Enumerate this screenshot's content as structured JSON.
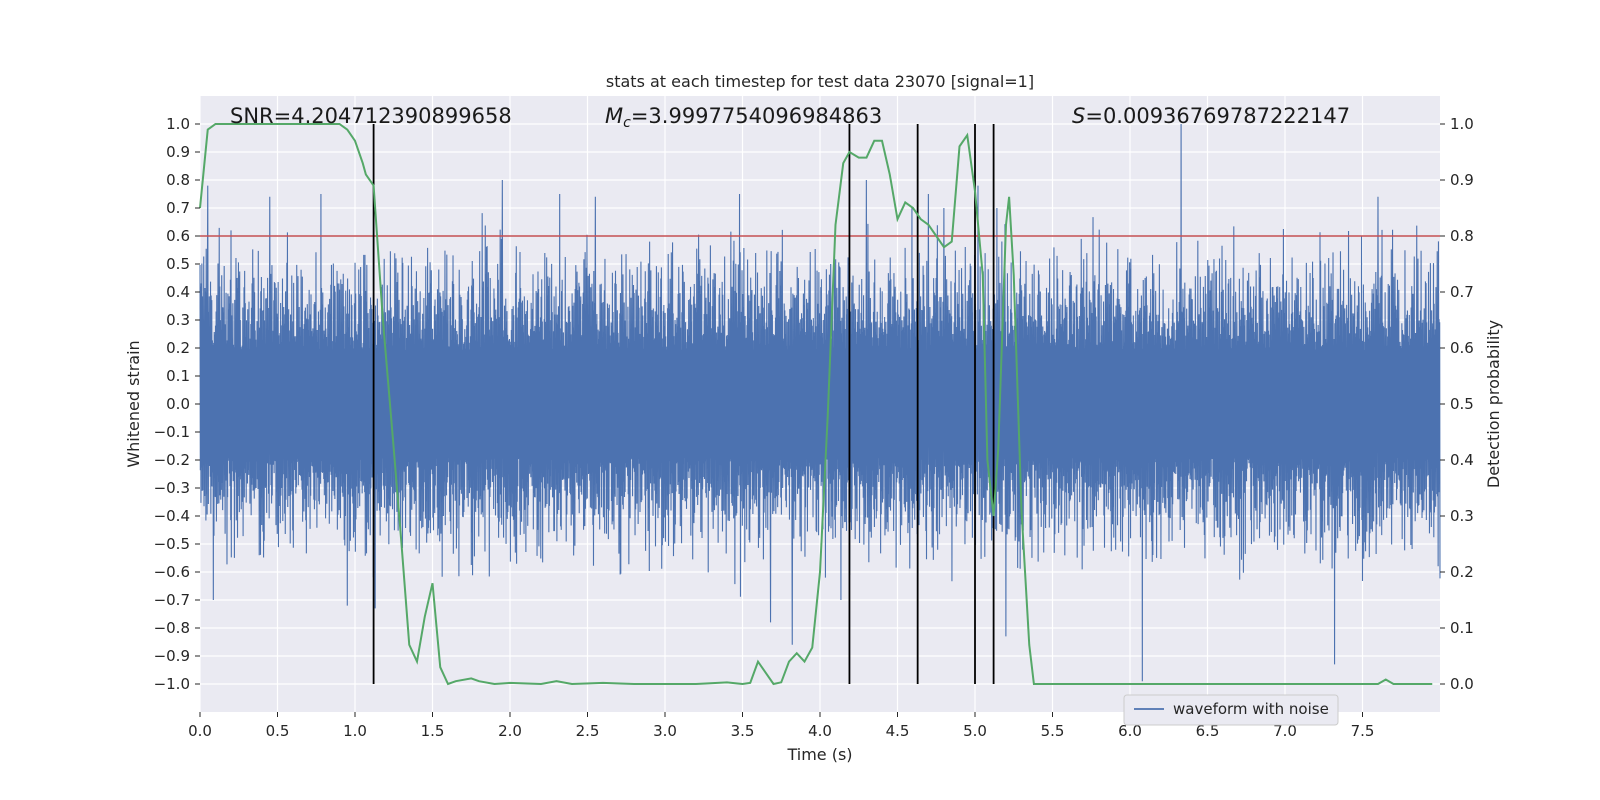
{
  "chart_data": {
    "type": "line",
    "title": "stats at each timestep for test data 23070 [signal=1]",
    "xlabel": "Time (s)",
    "ylabel": "Whitened strain",
    "ylabel_right": "Detection probability",
    "xlim": [
      0.0,
      8.0
    ],
    "ylim": [
      -1.1,
      1.1
    ],
    "ylim_right": [
      -0.05,
      1.05
    ],
    "x_ticks": [
      0.0,
      0.5,
      1.0,
      1.5,
      2.0,
      2.5,
      3.0,
      3.5,
      4.0,
      4.5,
      5.0,
      5.5,
      6.0,
      6.5,
      7.0,
      7.5
    ],
    "x_tick_labels": [
      "0.0",
      "0.5",
      "1.0",
      "1.5",
      "2.0",
      "2.5",
      "3.0",
      "3.5",
      "4.0",
      "4.5",
      "5.0",
      "5.5",
      "6.0",
      "6.5",
      "7.0",
      "7.5"
    ],
    "y_ticks": [
      1.0,
      0.9,
      0.8,
      0.7,
      0.6,
      0.5,
      0.4,
      0.3,
      0.2,
      0.1,
      0.0,
      -0.1,
      -0.2,
      -0.3,
      -0.4,
      -0.5,
      -0.6,
      -0.7,
      -0.8,
      -0.9,
      -1.0
    ],
    "y_tick_labels": [
      "1.0",
      "0.9",
      "0.8",
      "0.7",
      "0.6",
      "0.5",
      "0.4",
      "0.3",
      "0.2",
      "0.1",
      "0.0",
      "−0.1",
      "−0.2",
      "−0.3",
      "−0.4",
      "−0.5",
      "−0.6",
      "−0.7",
      "−0.8",
      "−0.9",
      "−1.0"
    ],
    "y_right_ticks": [
      1.0,
      0.9,
      0.8,
      0.7,
      0.6,
      0.5,
      0.4,
      0.3,
      0.2,
      0.1,
      0.0
    ],
    "y_right_tick_labels": [
      "1.0",
      "0.9",
      "0.8",
      "0.7",
      "0.6",
      "0.5",
      "0.4",
      "0.3",
      "0.2",
      "0.1",
      "0.0"
    ],
    "annotations": {
      "snr": "SNR=4.204712390899658",
      "mc_symbol": "M",
      "mc_sub": "c",
      "mc_value": "=3.9997754096984863",
      "s_symbol": "S",
      "s_value": "=0.00936769787222147"
    },
    "threshold": 0.8,
    "event_lines_x": [
      1.12,
      4.19,
      4.63,
      5.0,
      5.12
    ],
    "legend": {
      "label": "waveform with noise",
      "location": "lower right"
    },
    "waveform": {
      "name": "waveform with noise",
      "color": "#4c72b0",
      "typical_amplitude": 0.35,
      "spikes": [
        {
          "x": 0.05,
          "y": 0.78
        },
        {
          "x": 0.45,
          "y": 0.74
        },
        {
          "x": 0.78,
          "y": 0.75
        },
        {
          "x": 0.95,
          "y": -0.72
        },
        {
          "x": 1.13,
          "y": -0.73
        },
        {
          "x": 1.95,
          "y": 0.8
        },
        {
          "x": 2.32,
          "y": 0.75
        },
        {
          "x": 2.55,
          "y": 0.74
        },
        {
          "x": 3.48,
          "y": 0.75
        },
        {
          "x": 3.68,
          "y": -0.78
        },
        {
          "x": 3.82,
          "y": -0.86
        },
        {
          "x": 4.3,
          "y": 0.8
        },
        {
          "x": 4.7,
          "y": 0.75
        },
        {
          "x": 4.8,
          "y": 0.7
        },
        {
          "x": 5.02,
          "y": 0.78
        },
        {
          "x": 5.2,
          "y": -0.83
        },
        {
          "x": 6.08,
          "y": -0.99
        },
        {
          "x": 6.33,
          "y": 1.0
        },
        {
          "x": 7.32,
          "y": -0.93
        },
        {
          "x": 7.6,
          "y": 0.74
        }
      ]
    },
    "probability": {
      "name": "Detection probability",
      "color": "#55a868",
      "x": [
        0.0,
        0.05,
        0.1,
        0.2,
        0.3,
        0.4,
        0.5,
        0.6,
        0.7,
        0.8,
        0.9,
        0.95,
        1.0,
        1.05,
        1.07,
        1.12,
        1.18,
        1.25,
        1.3,
        1.35,
        1.4,
        1.45,
        1.5,
        1.55,
        1.6,
        1.65,
        1.75,
        1.8,
        1.9,
        2.0,
        2.2,
        2.3,
        2.4,
        2.6,
        2.8,
        3.0,
        3.2,
        3.4,
        3.5,
        3.55,
        3.6,
        3.65,
        3.7,
        3.75,
        3.8,
        3.85,
        3.9,
        3.95,
        4.0,
        4.05,
        4.1,
        4.15,
        4.19,
        4.25,
        4.3,
        4.35,
        4.4,
        4.45,
        4.5,
        4.55,
        4.6,
        4.65,
        4.7,
        4.75,
        4.8,
        4.85,
        4.9,
        4.95,
        5.0,
        5.05,
        5.08,
        5.12,
        5.15,
        5.2,
        5.22,
        5.25,
        5.3,
        5.35,
        5.38,
        5.42,
        5.45,
        5.5,
        5.55,
        5.6,
        5.8,
        6.0,
        6.2,
        6.4,
        6.6,
        6.8,
        6.9,
        7.0,
        7.2,
        7.4,
        7.5,
        7.6,
        7.65,
        7.7,
        7.9,
        7.95
      ],
      "y": [
        0.85,
        0.99,
        1.0,
        1.0,
        1.0,
        1.0,
        1.0,
        1.0,
        1.0,
        1.0,
        1.0,
        0.99,
        0.97,
        0.93,
        0.91,
        0.89,
        0.65,
        0.42,
        0.25,
        0.07,
        0.04,
        0.12,
        0.18,
        0.03,
        0.0,
        0.005,
        0.01,
        0.005,
        0.0,
        0.002,
        0.0,
        0.005,
        0.0,
        0.002,
        0.0,
        0.0,
        0.0,
        0.003,
        0.0,
        0.002,
        0.04,
        0.02,
        0.0,
        0.003,
        0.04,
        0.055,
        0.04,
        0.065,
        0.2,
        0.48,
        0.82,
        0.93,
        0.95,
        0.94,
        0.94,
        0.97,
        0.97,
        0.91,
        0.83,
        0.86,
        0.85,
        0.83,
        0.82,
        0.8,
        0.78,
        0.79,
        0.96,
        0.98,
        0.88,
        0.73,
        0.4,
        0.3,
        0.42,
        0.82,
        0.87,
        0.73,
        0.31,
        0.07,
        0.0,
        0.0,
        0.0,
        0.0,
        0.0,
        0.0,
        0.0,
        0.0,
        0.0,
        0.0,
        0.0,
        0.0,
        0.0,
        0.0,
        0.0,
        0.0,
        0.0,
        0.0,
        0.008,
        0.0,
        0.0,
        0.0
      ]
    },
    "colors": {
      "plot_background": "#eaeaf2",
      "grid": "#ffffff",
      "threshold_line": "#c44e52",
      "event_line": "#000000"
    }
  }
}
